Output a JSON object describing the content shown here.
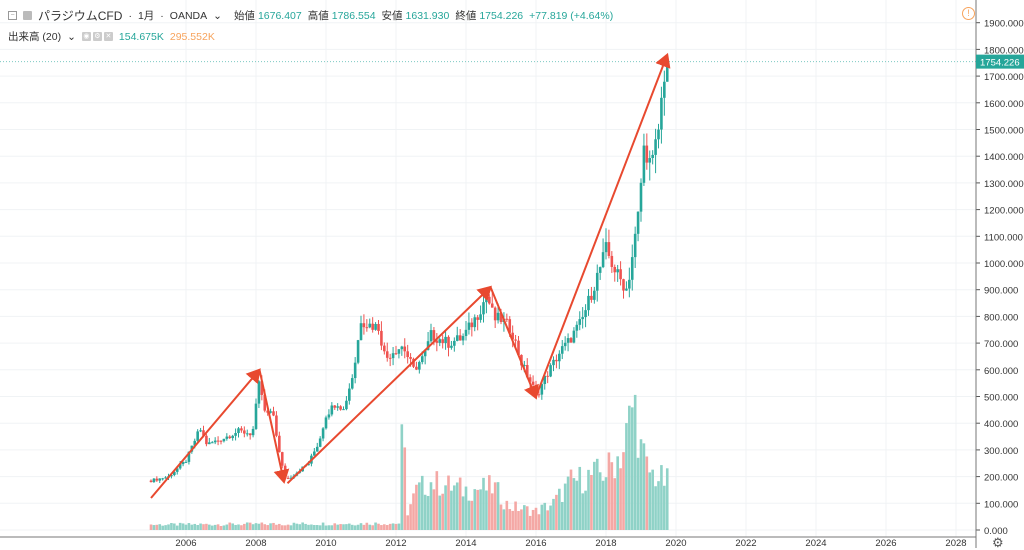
{
  "header": {
    "symbol": "パラジウムCFD",
    "interval": "1月",
    "exchange": "OANDA",
    "open_label": "始値",
    "open": "1676.407",
    "high_label": "高値",
    "high": "1786.554",
    "low_label": "安値",
    "low": "1631.930",
    "close_label": "終値",
    "close": "1754.226",
    "change": "+77.819 (+4.64%)"
  },
  "volume_legend": {
    "label": "出来高 (20)",
    "value1": "154.675K",
    "value2": "295.552K"
  },
  "current_price_label": "1754.226",
  "colors": {
    "up": "#26a69a",
    "down": "#ef5350",
    "vol_up": "#8fd2c7",
    "vol_down": "#f4a8a5",
    "arrow": "#e8492f"
  },
  "chart_data": {
    "type": "candlestick",
    "interval": "monthly",
    "ylim": [
      0,
      1950
    ],
    "xlim": [
      2004.1,
      2029.1
    ],
    "y_ticks": [
      "0.000",
      "100.000",
      "200.000",
      "300.000",
      "400.000",
      "500.000",
      "600.000",
      "700.000",
      "800.000",
      "900.000",
      "1000.000",
      "1100.000",
      "1200.000",
      "1300.000",
      "1400.000",
      "1500.000",
      "1600.000",
      "1700.000",
      "1800.000",
      "1900.000"
    ],
    "x_ticks": [
      "2006",
      "2008",
      "2010",
      "2012",
      "2014",
      "2016",
      "2018",
      "2020",
      "2022",
      "2024",
      "2026",
      "2028"
    ],
    "price_anchors": [
      [
        2005.0,
        185
      ],
      [
        2005.5,
        200
      ],
      [
        2006.0,
        260
      ],
      [
        2006.4,
        380
      ],
      [
        2006.6,
        320
      ],
      [
        2007.0,
        340
      ],
      [
        2007.5,
        370
      ],
      [
        2007.9,
        360
      ],
      [
        2008.1,
        560
      ],
      [
        2008.25,
        440
      ],
      [
        2008.5,
        430
      ],
      [
        2008.7,
        260
      ],
      [
        2008.85,
        190
      ],
      [
        2009.0,
        200
      ],
      [
        2009.5,
        250
      ],
      [
        2009.8,
        330
      ],
      [
        2010.0,
        430
      ],
      [
        2010.3,
        480
      ],
      [
        2010.5,
        450
      ],
      [
        2010.8,
        600
      ],
      [
        2011.0,
        790
      ],
      [
        2011.2,
        770
      ],
      [
        2011.5,
        760
      ],
      [
        2011.7,
        640
      ],
      [
        2011.9,
        670
      ],
      [
        2012.2,
        690
      ],
      [
        2012.5,
        600
      ],
      [
        2012.8,
        650
      ],
      [
        2013.0,
        730
      ],
      [
        2013.5,
        700
      ],
      [
        2013.9,
        720
      ],
      [
        2014.3,
        800
      ],
      [
        2014.6,
        880
      ],
      [
        2014.8,
        790
      ],
      [
        2015.0,
        790
      ],
      [
        2015.3,
        750
      ],
      [
        2015.6,
        620
      ],
      [
        2015.9,
        540
      ],
      [
        2016.0,
        500
      ],
      [
        2016.3,
        580
      ],
      [
        2016.7,
        670
      ],
      [
        2016.9,
        700
      ],
      [
        2017.3,
        780
      ],
      [
        2017.8,
        970
      ],
      [
        2018.0,
        1050
      ],
      [
        2018.3,
        960
      ],
      [
        2018.6,
        900
      ],
      [
        2018.9,
        1150
      ],
      [
        2019.1,
        1450
      ],
      [
        2019.3,
        1350
      ],
      [
        2019.5,
        1500
      ],
      [
        2019.7,
        1754
      ]
    ],
    "volume_anchors": [
      [
        2005.0,
        20
      ],
      [
        2012.1,
        25
      ],
      [
        2012.2,
        460
      ],
      [
        2012.3,
        60
      ],
      [
        2012.6,
        150
      ],
      [
        2013.0,
        180
      ],
      [
        2014.0,
        150
      ],
      [
        2014.8,
        160
      ],
      [
        2015.2,
        90
      ],
      [
        2016.0,
        70
      ],
      [
        2016.5,
        100
      ],
      [
        2017.0,
        180
      ],
      [
        2018.0,
        220
      ],
      [
        2018.5,
        300
      ],
      [
        2018.8,
        490
      ],
      [
        2019.0,
        300
      ],
      [
        2019.2,
        220
      ],
      [
        2019.7,
        180
      ]
    ],
    "arrows": [
      [
        [
          2005.0,
          120
        ],
        [
          2008.1,
          600
        ]
      ],
      [
        [
          2008.1,
          600
        ],
        [
          2008.8,
          180
        ]
      ],
      [
        [
          2008.9,
          175
        ],
        [
          2014.7,
          910
        ]
      ],
      [
        [
          2014.7,
          910
        ],
        [
          2016.0,
          495
        ]
      ],
      [
        [
          2016.0,
          500
        ],
        [
          2019.75,
          1780
        ]
      ]
    ]
  }
}
